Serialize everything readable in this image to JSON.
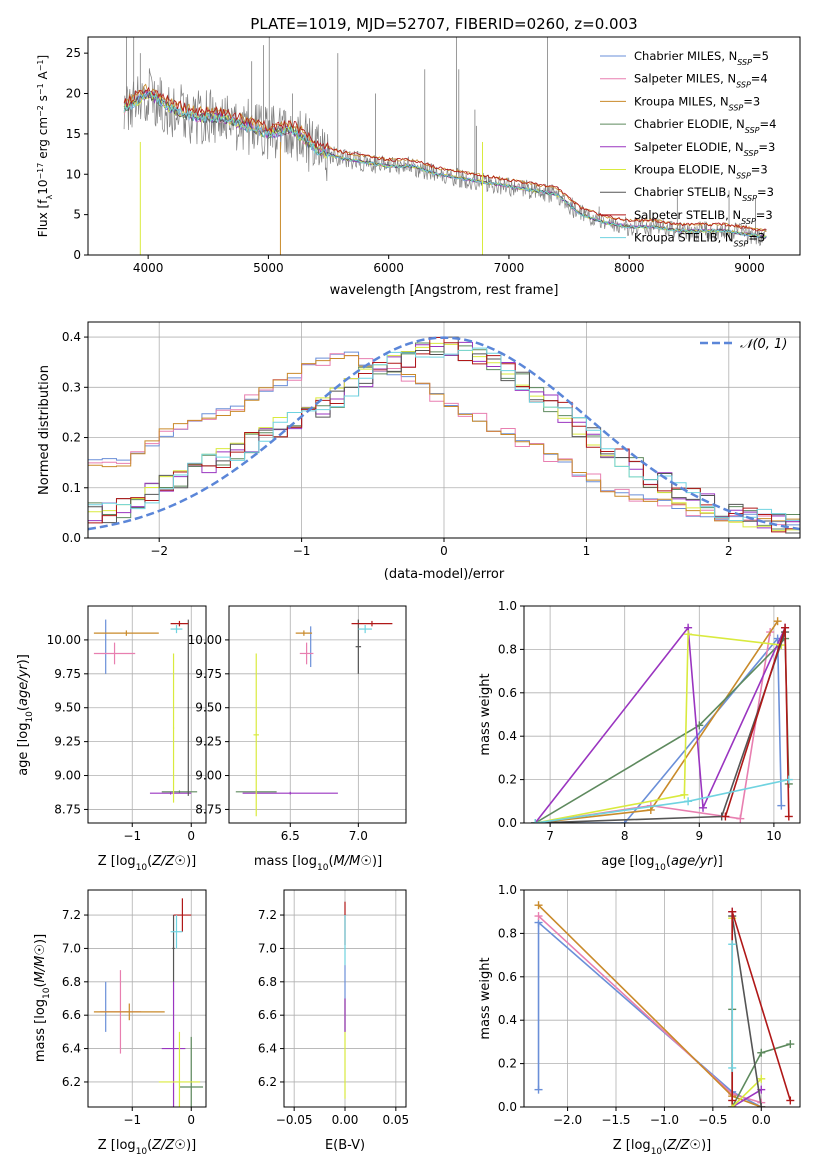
{
  "figure_title": "PLATE=1019, MJD=52707, FIBERID=0260, z=0.003",
  "colors": {
    "grid": "#b0b0b0",
    "series": [
      "#6a8fd8",
      "#e87fb0",
      "#c98a2a",
      "#5e8a5e",
      "#9a35c0",
      "#d9ea3e",
      "#555555",
      "#b01818",
      "#6fd3e0"
    ],
    "gaussian": "#5b86d8",
    "data_spectrum": "#808080"
  },
  "spectrum_legend": [
    {
      "base": "Chabrier MILES, N",
      "sub": "SSP",
      "tail": "=5"
    },
    {
      "base": "Salpeter MILES, N",
      "sub": "SSP",
      "tail": "=4"
    },
    {
      "base": "Kroupa MILES, N",
      "sub": "SSP",
      "tail": "=3"
    },
    {
      "base": "Chabrier ELODIE, N",
      "sub": "SSP",
      "tail": "=4"
    },
    {
      "base": "Salpeter ELODIE, N",
      "sub": "SSP",
      "tail": "=3"
    },
    {
      "base": "Kroupa ELODIE, N",
      "sub": "SSP",
      "tail": "=3"
    },
    {
      "base": "Chabrier STELIB, N",
      "sub": "SSP",
      "tail": "=3"
    },
    {
      "base": "Salpeter STELIB, N",
      "sub": "SSP",
      "tail": "=3"
    },
    {
      "base": "Kroupa STELIB, N",
      "sub": "SSP",
      "tail": "=3"
    }
  ],
  "chart_data": [
    {
      "id": "spectrum",
      "type": "line",
      "xlabel": "wavelength [Angstrom, rest frame]",
      "ylabel_parts": {
        "a": "Flux [f",
        "sub1": "λ",
        "b": "10",
        "sup1": "−17",
        "c": " erg cm",
        "sup2": "−2",
        "d": " s",
        "sup3": "−1",
        "e": " A",
        "sup4": "−1",
        "f": "]"
      },
      "xlim": [
        3500,
        9420
      ],
      "ylim": [
        0,
        27
      ],
      "xticks": [
        4000,
        5000,
        6000,
        7000,
        8000,
        9000
      ],
      "yticks": [
        0,
        5,
        10,
        15,
        20,
        25
      ],
      "continuum": [
        [
          3800,
          18
        ],
        [
          3900,
          19
        ],
        [
          4000,
          20
        ],
        [
          4200,
          18
        ],
        [
          4400,
          17
        ],
        [
          4600,
          17
        ],
        [
          4800,
          16
        ],
        [
          5000,
          15
        ],
        [
          5200,
          15.5
        ],
        [
          5400,
          13
        ],
        [
          5600,
          12
        ],
        [
          5800,
          11.5
        ],
        [
          6000,
          11
        ],
        [
          6200,
          11
        ],
        [
          6400,
          10
        ],
        [
          6600,
          9.5
        ],
        [
          6800,
          9
        ],
        [
          7000,
          8.5
        ],
        [
          7200,
          8
        ],
        [
          7400,
          7.5
        ],
        [
          7600,
          5
        ],
        [
          7800,
          4
        ],
        [
          8000,
          3.5
        ],
        [
          8200,
          3.5
        ],
        [
          8400,
          3
        ],
        [
          8600,
          3
        ],
        [
          8800,
          3
        ],
        [
          9000,
          2.5
        ],
        [
          9140,
          2.2
        ]
      ],
      "emission_lines": [
        [
          3820,
          27
        ],
        [
          3880,
          27
        ],
        [
          3935,
          25
        ],
        [
          4100,
          22
        ],
        [
          4340,
          18
        ],
        [
          4861,
          24
        ],
        [
          4959,
          26
        ],
        [
          5007,
          27
        ],
        [
          5200,
          20
        ],
        [
          5577,
          25
        ],
        [
          5890,
          20
        ],
        [
          6300,
          23
        ],
        [
          6563,
          27
        ],
        [
          6583,
          23
        ],
        [
          6717,
          18
        ],
        [
          6731,
          16
        ],
        [
          7320,
          27
        ],
        [
          7750,
          6
        ],
        [
          8400,
          8
        ],
        [
          8830,
          8
        ],
        [
          9050,
          7
        ]
      ]
    },
    {
      "id": "residuals",
      "type": "line",
      "xlabel": "(data-model)/error",
      "ylabel": "Normed distribution",
      "xlim": [
        -2.5,
        2.5
      ],
      "ylim": [
        0,
        0.43
      ],
      "xticks": [
        -2,
        -1,
        0,
        1,
        2
      ],
      "yticks": [
        0,
        0.1,
        0.2,
        0.3,
        0.4
      ],
      "legend_label": "𝒩(0, 1)",
      "hist_groups": [
        {
          "series": [
            0,
            1,
            2
          ],
          "values": [
            0.15,
            0.15,
            0.15,
            0.17,
            0.19,
            0.21,
            0.22,
            0.23,
            0.24,
            0.25,
            0.26,
            0.28,
            0.3,
            0.31,
            0.32,
            0.34,
            0.35,
            0.36,
            0.37,
            0.35,
            0.34,
            0.33,
            0.32,
            0.3,
            0.28,
            0.26,
            0.25,
            0.24,
            0.22,
            0.21,
            0.19,
            0.18,
            0.16,
            0.15,
            0.13,
            0.12,
            0.1,
            0.09,
            0.08,
            0.07,
            0.07,
            0.06,
            0.05,
            0.05,
            0.04,
            0.04,
            0.04,
            0.04,
            0.03,
            0.03
          ]
        },
        {
          "series": [
            3,
            4,
            5,
            6,
            7,
            8
          ],
          "values": [
            0.05,
            0.05,
            0.06,
            0.07,
            0.09,
            0.11,
            0.12,
            0.13,
            0.15,
            0.16,
            0.17,
            0.19,
            0.2,
            0.22,
            0.23,
            0.24,
            0.26,
            0.28,
            0.3,
            0.32,
            0.33,
            0.35,
            0.36,
            0.37,
            0.38,
            0.38,
            0.37,
            0.36,
            0.35,
            0.33,
            0.31,
            0.29,
            0.27,
            0.25,
            0.22,
            0.2,
            0.18,
            0.16,
            0.14,
            0.12,
            0.11,
            0.09,
            0.08,
            0.07,
            0.06,
            0.05,
            0.04,
            0.04,
            0.03,
            0.03
          ]
        }
      ]
    },
    {
      "id": "age_vs_Z",
      "type": "scatter",
      "xlabel": "Z [log10(Z/Z☉)]",
      "ylabel": "age  [log10(age/yr)]",
      "xlim": [
        -1.75,
        0.25
      ],
      "ylim": [
        8.65,
        10.25
      ],
      "xticks": [
        -1,
        0
      ],
      "yticks": [
        8.75,
        9.0,
        9.25,
        9.5,
        9.75,
        10.0
      ],
      "crosses": [
        {
          "s": 0,
          "x": -1.45,
          "y": 9.95,
          "dx": 0.0,
          "dy": 0.2
        },
        {
          "s": 1,
          "x": -1.3,
          "y": 9.9,
          "dx": 0.35,
          "dy": 0.08
        },
        {
          "s": 2,
          "x": -1.1,
          "y": 10.05,
          "dx": 0.55,
          "dy": 0.02
        },
        {
          "s": 3,
          "x": -0.2,
          "y": 8.88,
          "dx": 0.3,
          "dy": 0.01
        },
        {
          "s": 4,
          "x": -0.35,
          "y": 8.87,
          "dx": 0.35,
          "dy": 0.01
        },
        {
          "s": 5,
          "x": -0.3,
          "y": 9.35,
          "dx": 0.01,
          "dy": 0.55
        },
        {
          "s": 6,
          "x": -0.05,
          "y": 9.5,
          "dx": 0.01,
          "dy": 0.65
        },
        {
          "s": 7,
          "x": -0.2,
          "y": 10.12,
          "dx": 0.15,
          "dy": 0.02
        },
        {
          "s": 8,
          "x": -0.25,
          "y": 10.08,
          "dx": 0.1,
          "dy": 0.03
        }
      ]
    },
    {
      "id": "age_vs_mass",
      "type": "scatter",
      "xlabel": "mass [log10(M/M☉)]",
      "ylabel": "",
      "xlim": [
        6.05,
        7.35
      ],
      "ylim": [
        8.65,
        10.25
      ],
      "xticks": [
        6.5,
        7.0
      ],
      "yticks": [
        8.75,
        9.0,
        9.25,
        9.5,
        9.75,
        10.0
      ],
      "crosses": [
        {
          "s": 0,
          "x": 6.65,
          "y": 9.95,
          "dx": 0.0,
          "dy": 0.15
        },
        {
          "s": 1,
          "x": 6.62,
          "y": 9.9,
          "dx": 0.05,
          "dy": 0.08
        },
        {
          "s": 2,
          "x": 6.6,
          "y": 10.05,
          "dx": 0.06,
          "dy": 0.02
        },
        {
          "s": 3,
          "x": 6.25,
          "y": 8.88,
          "dx": 0.15,
          "dy": 0.01
        },
        {
          "s": 4,
          "x": 6.5,
          "y": 8.87,
          "dx": 0.35,
          "dy": 0.01
        },
        {
          "s": 5,
          "x": 6.25,
          "y": 9.3,
          "dx": 0.02,
          "dy": 0.6
        },
        {
          "s": 6,
          "x": 7.0,
          "y": 9.95,
          "dx": 0.02,
          "dy": 0.2
        },
        {
          "s": 7,
          "x": 7.1,
          "y": 10.12,
          "dx": 0.15,
          "dy": 0.02
        },
        {
          "s": 8,
          "x": 7.05,
          "y": 10.08,
          "dx": 0.05,
          "dy": 0.03
        }
      ]
    },
    {
      "id": "weight_vs_age",
      "type": "line",
      "xlabel": "age  [log10(age/yr)]",
      "ylabel": "mass weight",
      "xlim": [
        6.65,
        10.35
      ],
      "ylim": [
        0,
        1
      ],
      "xticks": [
        7,
        8,
        9,
        10
      ],
      "yticks": [
        0,
        0.2,
        0.4,
        0.6,
        0.8,
        1.0
      ],
      "series": [
        {
          "s": 0,
          "x": [
            6.8,
            8.0,
            10.05,
            10.1
          ],
          "y": [
            0.0,
            0.0,
            0.85,
            0.08
          ]
        },
        {
          "s": 1,
          "x": [
            6.8,
            8.35,
            9.55,
            9.95
          ],
          "y": [
            0.0,
            0.08,
            0.02,
            0.88
          ]
        },
        {
          "s": 2,
          "x": [
            6.8,
            8.35,
            10.05
          ],
          "y": [
            0.0,
            0.06,
            0.93
          ]
        },
        {
          "s": 3,
          "x": [
            6.8,
            9.0,
            10.15,
            10.2
          ],
          "y": [
            0.0,
            0.45,
            0.85,
            0.18
          ]
        },
        {
          "s": 4,
          "x": [
            6.8,
            8.85,
            9.05,
            10.15
          ],
          "y": [
            0.0,
            0.9,
            0.07,
            0.9
          ]
        },
        {
          "s": 5,
          "x": [
            6.8,
            8.8,
            8.85,
            10.1
          ],
          "y": [
            0.0,
            0.13,
            0.87,
            0.82
          ]
        },
        {
          "s": 6,
          "x": [
            6.8,
            9.3,
            10.15
          ],
          "y": [
            0.0,
            0.03,
            0.88
          ]
        },
        {
          "s": 7,
          "x": [
            9.35,
            10.15,
            10.2
          ],
          "y": [
            0.03,
            0.9,
            0.03
          ]
        },
        {
          "s": 8,
          "x": [
            6.8,
            8.85,
            10.2
          ],
          "y": [
            0.0,
            0.1,
            0.2
          ]
        }
      ]
    },
    {
      "id": "mass_vs_Z",
      "type": "scatter",
      "xlabel": "Z [log10(Z/Z☉)]",
      "ylabel": "mass [log10(M/M☉)]",
      "xlim": [
        -1.75,
        0.25
      ],
      "ylim": [
        6.05,
        7.35
      ],
      "xticks": [
        -1,
        0
      ],
      "yticks": [
        6.2,
        6.4,
        6.6,
        6.8,
        7.0,
        7.2
      ],
      "crosses": [
        {
          "s": 0,
          "x": -1.45,
          "y": 6.65,
          "dx": 0.0,
          "dy": 0.15
        },
        {
          "s": 1,
          "x": -1.2,
          "y": 6.62,
          "dx": 0.35,
          "dy": 0.25
        },
        {
          "s": 2,
          "x": -1.05,
          "y": 6.62,
          "dx": 0.6,
          "dy": 0.05
        },
        {
          "s": 3,
          "x": 0.0,
          "y": 6.17,
          "dx": 0.2,
          "dy": 0.3
        },
        {
          "s": 4,
          "x": -0.3,
          "y": 6.4,
          "dx": 0.2,
          "dy": 0.4
        },
        {
          "s": 5,
          "x": -0.2,
          "y": 6.2,
          "dx": 0.35,
          "dy": 0.3
        },
        {
          "s": 6,
          "x": -0.3,
          "y": 7.0,
          "dx": 0.02,
          "dy": 0.2
        },
        {
          "s": 7,
          "x": -0.15,
          "y": 7.2,
          "dx": 0.15,
          "dy": 0.1
        },
        {
          "s": 8,
          "x": -0.25,
          "y": 7.1,
          "dx": 0.1,
          "dy": 0.1
        }
      ]
    },
    {
      "id": "mass_vs_ebv",
      "type": "scatter",
      "xlabel": "E(B-V)",
      "ylabel": "",
      "xlim": [
        -0.06,
        0.06
      ],
      "ylim": [
        6.05,
        7.35
      ],
      "xticks": [
        -0.05,
        0.0,
        0.05
      ],
      "yticks": [
        6.2,
        6.4,
        6.6,
        6.8,
        7.0,
        7.2
      ],
      "crosses": [
        {
          "s": 0,
          "x": 0,
          "y": 6.7,
          "dx": 0,
          "dy": 0.2
        },
        {
          "s": 5,
          "x": 0,
          "y": 6.4,
          "dx": 0,
          "dy": 0.3
        },
        {
          "s": 4,
          "x": 0,
          "y": 6.6,
          "dx": 0,
          "dy": 0.1
        },
        {
          "s": 7,
          "x": 0,
          "y": 7.15,
          "dx": 0,
          "dy": 0.13
        },
        {
          "s": 8,
          "x": 0,
          "y": 7.05,
          "dx": 0,
          "dy": 0.15
        }
      ]
    },
    {
      "id": "weight_vs_Z",
      "type": "line",
      "xlabel": "Z [log10(Z/Z☉)]",
      "ylabel": "mass weight",
      "xlim": [
        -2.45,
        0.4
      ],
      "ylim": [
        0,
        1
      ],
      "xticks": [
        -2.0,
        -1.5,
        -1.0,
        -0.5,
        0.0
      ],
      "yticks": [
        0,
        0.2,
        0.4,
        0.6,
        0.8,
        1.0
      ],
      "series": [
        {
          "s": 0,
          "x": [
            -2.3,
            -2.3,
            -0.3,
            0.0
          ],
          "y": [
            0.08,
            0.85,
            0.07,
            0.0
          ]
        },
        {
          "s": 1,
          "x": [
            -2.3,
            -0.3,
            0.0
          ],
          "y": [
            0.88,
            0.06,
            0.02
          ]
        },
        {
          "s": 2,
          "x": [
            -2.3,
            -0.3,
            0.0
          ],
          "y": [
            0.93,
            0.05,
            0.0
          ]
        },
        {
          "s": 3,
          "x": [
            -0.3,
            -0.3,
            0.0,
            0.3
          ],
          "y": [
            0.45,
            0.0,
            0.25,
            0.29
          ]
        },
        {
          "s": 4,
          "x": [
            -0.3,
            -0.3,
            0.0
          ],
          "y": [
            0.9,
            0.0,
            0.08
          ]
        },
        {
          "s": 5,
          "x": [
            -0.3,
            -0.3,
            0.0
          ],
          "y": [
            0.87,
            0.0,
            0.13
          ]
        },
        {
          "s": 6,
          "x": [
            -0.3,
            0.0
          ],
          "y": [
            0.88,
            0.0
          ]
        },
        {
          "s": 7,
          "x": [
            -0.3,
            -0.3,
            0.3
          ],
          "y": [
            0.03,
            0.9,
            0.03
          ]
        },
        {
          "s": 8,
          "x": [
            -0.3,
            -0.3
          ],
          "y": [
            0.18,
            0.75
          ]
        }
      ]
    }
  ]
}
